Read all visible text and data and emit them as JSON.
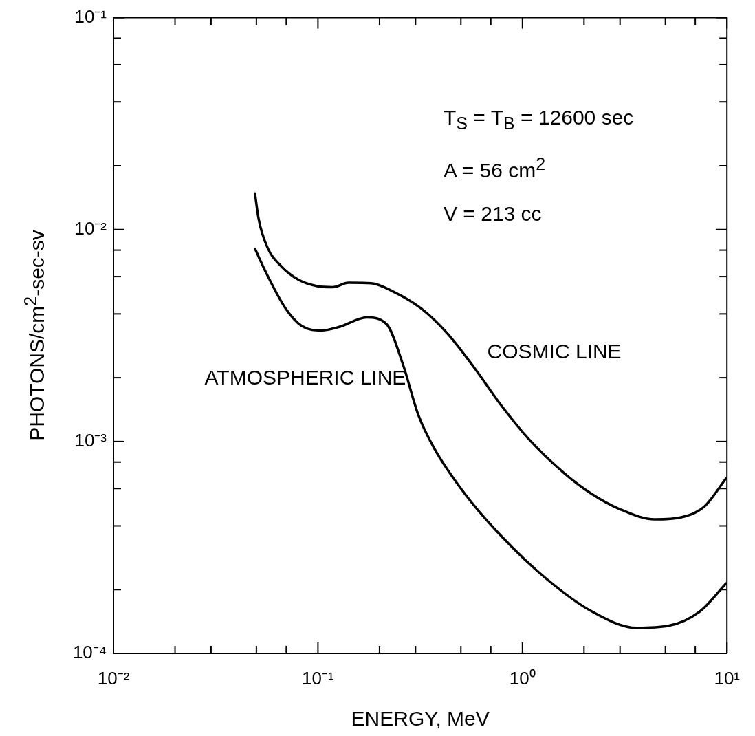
{
  "chart_data": {
    "type": "line",
    "xlabel": "ENERGY, MeV",
    "ylabel": "PHOTONS/cm$^{2}$-sec-sv",
    "log": "xy",
    "grid": false,
    "legend": false,
    "marker": "none",
    "line_style": "solid",
    "xlim": [
      0.01,
      10
    ],
    "ylim": [
      0.0001,
      0.1
    ],
    "xticks": [
      {
        "value": 0.01,
        "label": "10⁻²"
      },
      {
        "value": 0.02,
        "label": null
      },
      {
        "value": 0.03,
        "label": null
      },
      {
        "value": 0.05,
        "label": null
      },
      {
        "value": 0.07,
        "label": null
      },
      {
        "value": 0.1,
        "label": "10⁻¹"
      },
      {
        "value": 0.2,
        "label": null
      },
      {
        "value": 0.3,
        "label": null
      },
      {
        "value": 0.5,
        "label": null
      },
      {
        "value": 0.7,
        "label": null
      },
      {
        "value": 1,
        "label": "10⁰"
      },
      {
        "value": 2,
        "label": null
      },
      {
        "value": 3,
        "label": null
      },
      {
        "value": 5,
        "label": null
      },
      {
        "value": 7,
        "label": null
      },
      {
        "value": 10,
        "label": "10¹"
      }
    ],
    "yticks": [
      {
        "value": 0.0001,
        "label": "10⁻⁴"
      },
      {
        "value": 0.0002,
        "label": null
      },
      {
        "value": 0.0004,
        "label": null
      },
      {
        "value": 0.0006,
        "label": null
      },
      {
        "value": 0.0008,
        "label": null
      },
      {
        "value": 0.001,
        "label": "10⁻³"
      },
      {
        "value": 0.002,
        "label": null
      },
      {
        "value": 0.004,
        "label": null
      },
      {
        "value": 0.006,
        "label": null
      },
      {
        "value": 0.008,
        "label": null
      },
      {
        "value": 0.01,
        "label": "10⁻²"
      },
      {
        "value": 0.02,
        "label": null
      },
      {
        "value": 0.04,
        "label": null
      },
      {
        "value": 0.06,
        "label": null
      },
      {
        "value": 0.08,
        "label": null
      },
      {
        "value": 0.1,
        "label": "10⁻¹"
      }
    ],
    "annotations": [
      "T$_{S}$ = T$_{B}$ = 12600 sec",
      "A = 56 cm$^{2}$",
      "V = 213 cc"
    ],
    "series": [
      {
        "name": "COSMIC LINE",
        "color": "#000000",
        "x": [
          0.0492,
          0.0513,
          0.0566,
          0.066,
          0.0807,
          0.099,
          0.118,
          0.141,
          0.182,
          0.234,
          0.318,
          0.43,
          0.585,
          0.792,
          1.07,
          1.61,
          2.18,
          2.96,
          4.44,
          6.03,
          7.76,
          9.9
        ],
        "values": [
          0.0148,
          0.0112,
          0.00824,
          0.00673,
          0.00578,
          0.00541,
          0.00535,
          0.00561,
          0.00558,
          0.00509,
          0.00426,
          0.00323,
          0.00221,
          0.00147,
          0.00103,
          0.000705,
          0.000566,
          0.000482,
          0.000429,
          0.00044,
          0.000494,
          0.00067
        ]
      },
      {
        "name": "ATMOSPHERIC LINE",
        "color": "#000000",
        "x": [
          0.0492,
          0.0566,
          0.0693,
          0.083,
          0.104,
          0.128,
          0.173,
          0.217,
          0.26,
          0.31,
          0.37,
          0.527,
          0.792,
          1.31,
          2.18,
          3.62,
          5.17,
          7.38,
          9.9
        ],
        "values": [
          0.00812,
          0.00608,
          0.00426,
          0.00352,
          0.00334,
          0.00348,
          0.00385,
          0.00357,
          0.00232,
          0.00133,
          0.00093,
          0.000561,
          0.000356,
          0.000225,
          0.000158,
          0.000132,
          0.000135,
          0.000158,
          0.000214
        ]
      }
    ]
  }
}
